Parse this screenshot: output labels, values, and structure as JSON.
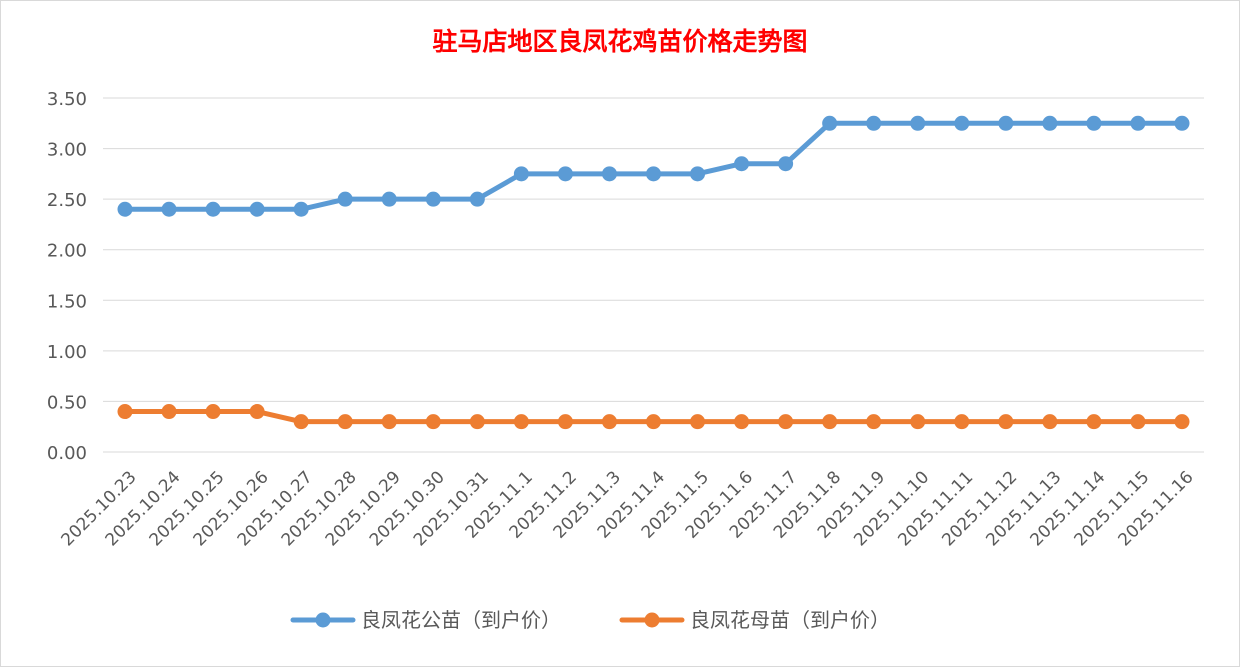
{
  "chart_data": {
    "type": "line",
    "title": "驻马店地区良凤花鸡苗价格走势图",
    "xlabel": "",
    "ylabel": "",
    "ylim": [
      0,
      3.5
    ],
    "yticks": [
      "0.00",
      "0.50",
      "1.00",
      "1.50",
      "2.00",
      "2.50",
      "3.00",
      "3.50"
    ],
    "grid": true,
    "legend": "bottom",
    "categories": [
      "2025.10.23",
      "2025.10.24",
      "2025.10.25",
      "2025.10.26",
      "2025.10.27",
      "2025.10.28",
      "2025.10.29",
      "2025.10.30",
      "2025.10.31",
      "2025.11.1",
      "2025.11.2",
      "2025.11.3",
      "2025.11.4",
      "2025.11.5",
      "2025.11.6",
      "2025.11.7",
      "2025.11.8",
      "2025.11.9",
      "2025.11.10",
      "2025.11.11",
      "2025.11.12",
      "2025.11.13",
      "2025.11.14",
      "2025.11.15",
      "2025.11.16"
    ],
    "series": [
      {
        "name": "良凤花公苗（到户价）",
        "color": "#5b9bd5",
        "values": [
          2.4,
          2.4,
          2.4,
          2.4,
          2.4,
          2.5,
          2.5,
          2.5,
          2.5,
          2.75,
          2.75,
          2.75,
          2.75,
          2.75,
          2.85,
          2.85,
          3.25,
          3.25,
          3.25,
          3.25,
          3.25,
          3.25,
          3.25,
          3.25,
          3.25
        ]
      },
      {
        "name": "良凤花母苗（到户价）",
        "color": "#ed7d31",
        "values": [
          0.4,
          0.4,
          0.4,
          0.4,
          0.3,
          0.3,
          0.3,
          0.3,
          0.3,
          0.3,
          0.3,
          0.3,
          0.3,
          0.3,
          0.3,
          0.3,
          0.3,
          0.3,
          0.3,
          0.3,
          0.3,
          0.3,
          0.3,
          0.3,
          0.3
        ]
      }
    ]
  }
}
